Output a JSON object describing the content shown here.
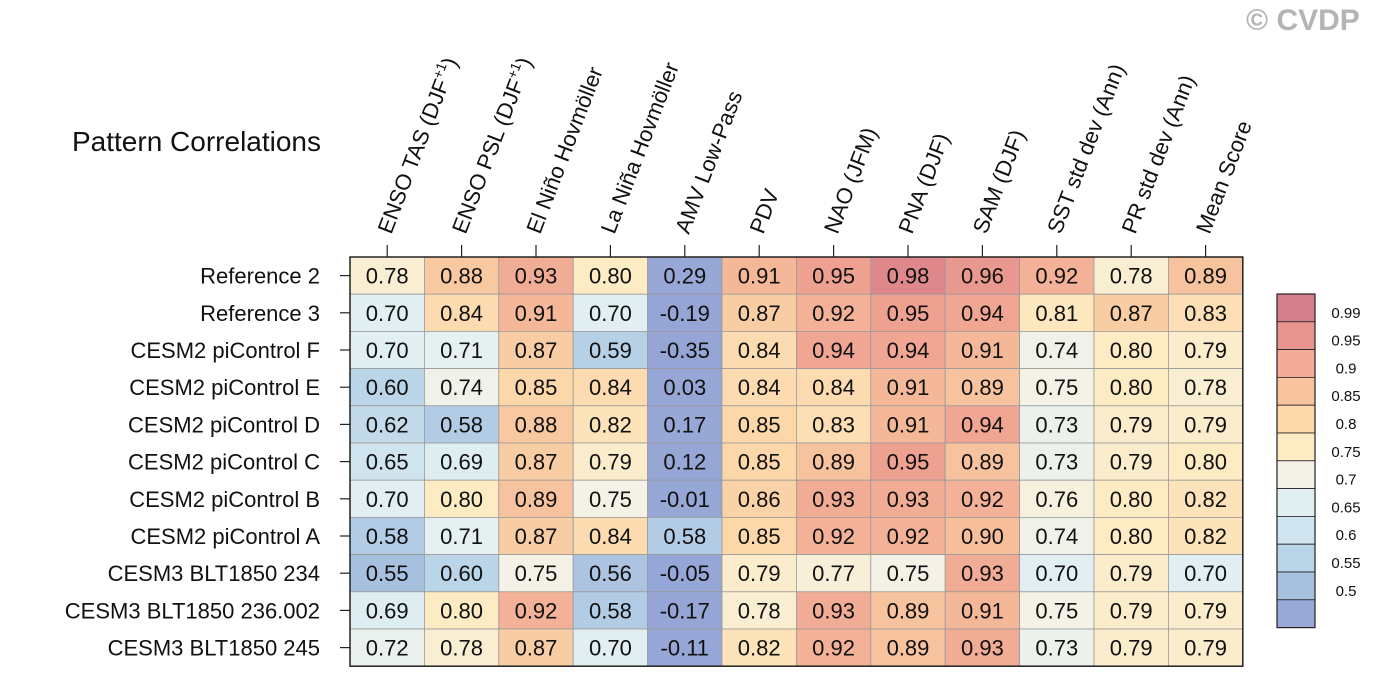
{
  "watermark": "© CVDP",
  "chart_data": {
    "type": "heatmap",
    "title": "Pattern Correlations",
    "columns": [
      "ENSO TAS (DJF+1)",
      "ENSO PSL (DJF+1)",
      "El Niño Hovmöller",
      "La Niña Hovmöller",
      "AMV Low-Pass",
      "PDV",
      "NAO (JFM)",
      "PNA (DJF)",
      "SAM (DJF)",
      "SST std dev (Ann)",
      "PR std dev (Ann)",
      "Mean Score"
    ],
    "column_labels": [
      {
        "text": "ENSO TAS (DJF",
        "sup": "+1",
        "tail": ")"
      },
      {
        "text": "ENSO PSL (DJF",
        "sup": "+1",
        "tail": ")"
      },
      {
        "text": "El Niño Hovmöller",
        "sup": "",
        "tail": ""
      },
      {
        "text": "La Niña Hovmöller",
        "sup": "",
        "tail": ""
      },
      {
        "text": "AMV Low-Pass",
        "sup": "",
        "tail": ""
      },
      {
        "text": "PDV",
        "sup": "",
        "tail": ""
      },
      {
        "text": "NAO (JFM)",
        "sup": "",
        "tail": ""
      },
      {
        "text": "PNA (DJF)",
        "sup": "",
        "tail": ""
      },
      {
        "text": "SAM (DJF)",
        "sup": "",
        "tail": ""
      },
      {
        "text": "SST std dev (Ann)",
        "sup": "",
        "tail": ""
      },
      {
        "text": "PR std dev (Ann)",
        "sup": "",
        "tail": ""
      },
      {
        "text": "Mean Score",
        "sup": "",
        "tail": ""
      }
    ],
    "rows": [
      "Reference 2",
      "Reference 3",
      "CESM2 piControl F",
      "CESM2 piControl E",
      "CESM2 piControl D",
      "CESM2 piControl C",
      "CESM2 piControl B",
      "CESM2 piControl A",
      "CESM3 BLT1850 234",
      "CESM3 BLT1850 236.002",
      "CESM3 BLT1850 245"
    ],
    "values": [
      [
        "0.78",
        "0.88",
        "0.93",
        "0.80",
        "0.29",
        "0.91",
        "0.95",
        "0.98",
        "0.96",
        "0.92",
        "0.78",
        "0.89"
      ],
      [
        "0.70",
        "0.84",
        "0.91",
        "0.70",
        "-0.19",
        "0.87",
        "0.92",
        "0.95",
        "0.94",
        "0.81",
        "0.87",
        "0.83"
      ],
      [
        "0.70",
        "0.71",
        "0.87",
        "0.59",
        "-0.35",
        "0.84",
        "0.94",
        "0.94",
        "0.91",
        "0.74",
        "0.80",
        "0.79"
      ],
      [
        "0.60",
        "0.74",
        "0.85",
        "0.84",
        "0.03",
        "0.84",
        "0.84",
        "0.91",
        "0.89",
        "0.75",
        "0.80",
        "0.78"
      ],
      [
        "0.62",
        "0.58",
        "0.88",
        "0.82",
        "0.17",
        "0.85",
        "0.83",
        "0.91",
        "0.94",
        "0.73",
        "0.79",
        "0.79"
      ],
      [
        "0.65",
        "0.69",
        "0.87",
        "0.79",
        "0.12",
        "0.85",
        "0.89",
        "0.95",
        "0.89",
        "0.73",
        "0.79",
        "0.80"
      ],
      [
        "0.70",
        "0.80",
        "0.89",
        "0.75",
        "-0.01",
        "0.86",
        "0.93",
        "0.93",
        "0.92",
        "0.76",
        "0.80",
        "0.82"
      ],
      [
        "0.58",
        "0.71",
        "0.87",
        "0.84",
        "0.58",
        "0.85",
        "0.92",
        "0.92",
        "0.90",
        "0.74",
        "0.80",
        "0.82"
      ],
      [
        "0.55",
        "0.60",
        "0.75",
        "0.56",
        "-0.05",
        "0.79",
        "0.77",
        "0.75",
        "0.93",
        "0.70",
        "0.79",
        "0.70"
      ],
      [
        "0.69",
        "0.80",
        "0.92",
        "0.58",
        "-0.17",
        "0.78",
        "0.93",
        "0.89",
        "0.91",
        "0.75",
        "0.79",
        "0.79"
      ],
      [
        "0.72",
        "0.78",
        "0.87",
        "0.70",
        "-0.11",
        "0.82",
        "0.92",
        "0.89",
        "0.93",
        "0.73",
        "0.79",
        "0.79"
      ]
    ],
    "colorbar": {
      "labels": [
        "0.99",
        "0.95",
        "0.9",
        "0.85",
        "0.8",
        "0.75",
        "0.7",
        "0.65",
        "0.6",
        "0.55",
        "0.5"
      ],
      "colors": [
        "#d47f8d",
        "#e8958f",
        "#f2ab96",
        "#f8c39f",
        "#fbd7aa",
        "#fdebc4",
        "#f4f2e6",
        "#e1eff3",
        "#cfe4ee",
        "#bad4e8",
        "#a8c0e0",
        "#98a9d7"
      ]
    }
  }
}
